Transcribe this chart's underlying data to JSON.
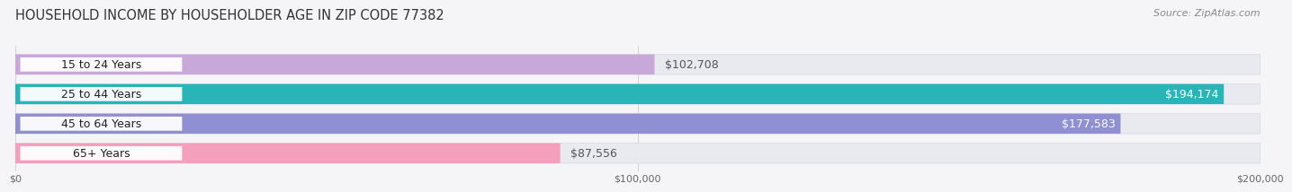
{
  "title": "HOUSEHOLD INCOME BY HOUSEHOLDER AGE IN ZIP CODE 77382",
  "source": "Source: ZipAtlas.com",
  "categories": [
    "15 to 24 Years",
    "25 to 44 Years",
    "45 to 64 Years",
    "65+ Years"
  ],
  "values": [
    102708,
    194174,
    177583,
    87556
  ],
  "bar_colors": [
    "#c8a8d8",
    "#29b5b8",
    "#8f8fd4",
    "#f4a0bc"
  ],
  "bar_bg_color": "#e9e9f0",
  "value_labels": [
    "$102,708",
    "$194,174",
    "$177,583",
    "$87,556"
  ],
  "value_label_inside": [
    false,
    true,
    true,
    false
  ],
  "value_label_colors_inside": "#ffffff",
  "value_label_colors_outside": "#555555",
  "xmax": 200000,
  "xticklabels": [
    "$0",
    "$100,000",
    "$200,000"
  ],
  "xtick_values": [
    0,
    100000,
    200000
  ],
  "title_fontsize": 10.5,
  "source_fontsize": 8,
  "cat_label_fontsize": 9,
  "value_fontsize": 9,
  "background_color": "#f5f5f8",
  "bar_height": 0.68,
  "pill_bg": "#ffffff",
  "grid_color": "#d0d0da",
  "bar_bg_border_color": "#d8d8e8"
}
